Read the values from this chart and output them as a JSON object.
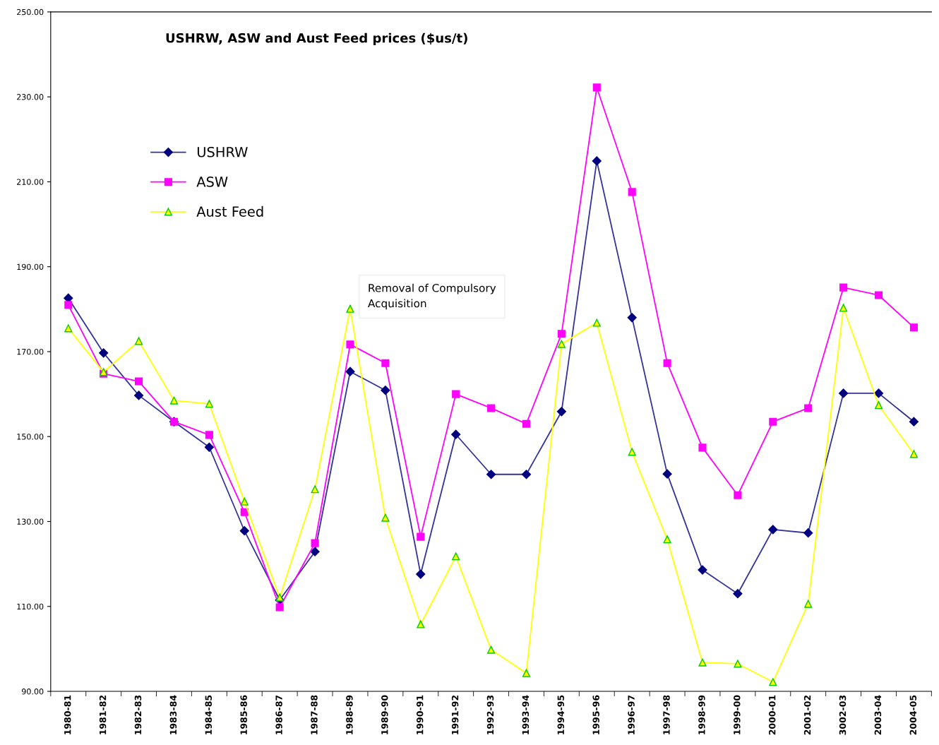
{
  "chart_data": {
    "type": "line",
    "title": "USHRW, ASW and Aust Feed prices ($us/t)",
    "categories": [
      "1980-81",
      "1981-82",
      "1982-83",
      "1983-84",
      "1984-85",
      "1985-86",
      "1986-87",
      "1987-88",
      "1988-89",
      "1989-90",
      "1990-91",
      "1991-92",
      "1992-93",
      "1993-94",
      "1994-95",
      "1995-96",
      "1996-97",
      "1997-98",
      "1998-99",
      "1999-00",
      "2000-01",
      "2001-02",
      "3002-03",
      "2003-04",
      "2004-05"
    ],
    "series": [
      {
        "name": "USHRW",
        "color": "#333399",
        "marker": "diamond",
        "values": [
          182.6,
          169.7,
          159.7,
          153.5,
          147.5,
          127.8,
          111.5,
          122.9,
          165.3,
          160.9,
          117.6,
          150.5,
          141.1,
          141.1,
          155.9,
          214.9,
          178.0,
          141.2,
          118.6,
          113.0,
          128.1,
          127.3,
          160.2,
          160.2,
          153.5
        ]
      },
      {
        "name": "ASW",
        "color": "#ff00ff",
        "marker": "square",
        "values": [
          181.0,
          164.8,
          163.0,
          153.5,
          150.4,
          132.2,
          109.8,
          124.9,
          171.7,
          167.3,
          126.4,
          160.0,
          156.7,
          153.0,
          174.2,
          232.2,
          207.6,
          167.3,
          147.4,
          136.2,
          153.5,
          156.7,
          185.1,
          183.3,
          175.7
        ]
      },
      {
        "name": "Aust Feed",
        "color": "#ffff00",
        "marker": "triangle",
        "values": [
          175.5,
          165.2,
          172.5,
          158.5,
          157.7,
          134.7,
          112.1,
          137.6,
          180.1,
          130.9,
          105.8,
          121.8,
          99.8,
          94.3,
          171.8,
          176.8,
          146.4,
          125.8,
          96.8,
          96.5,
          92.2,
          110.6,
          180.3,
          157.4,
          145.9
        ]
      }
    ],
    "ylim": [
      90,
      250
    ],
    "yticks": [
      {
        "value": 90,
        "label": "90.00"
      },
      {
        "value": 110,
        "label": "110.00"
      },
      {
        "value": 130,
        "label": "130.00"
      },
      {
        "value": 150,
        "label": "150.00"
      },
      {
        "value": 170,
        "label": "170.00"
      },
      {
        "value": 190,
        "label": "190.00"
      },
      {
        "value": 210,
        "label": "210.00"
      },
      {
        "value": 230,
        "label": "230.00"
      },
      {
        "value": 250,
        "label": "250.00"
      }
    ],
    "annotations": [
      "Removal of Compulsory\nAcquisition"
    ],
    "legend": "top left",
    "grid": false
  }
}
